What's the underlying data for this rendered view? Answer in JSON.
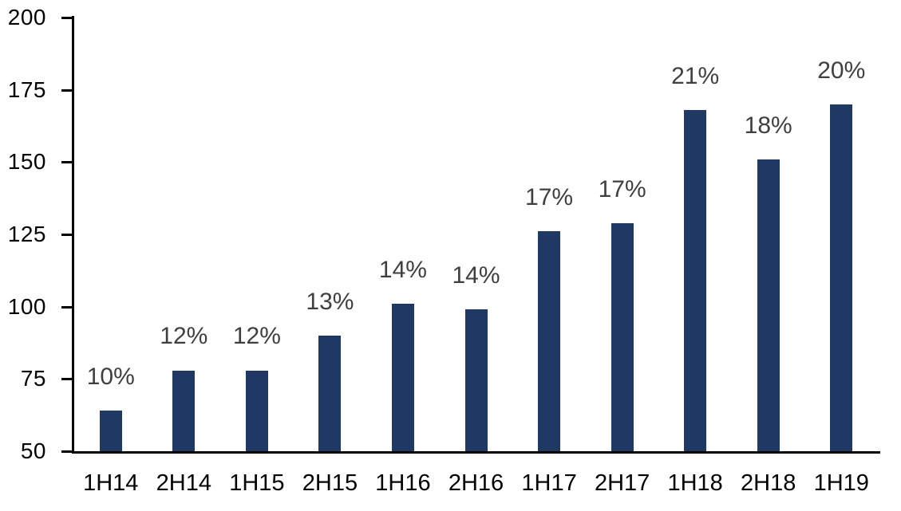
{
  "chart_data": {
    "type": "bar",
    "title": "",
    "xlabel": "",
    "ylabel": "",
    "categories": [
      "1H14",
      "2H14",
      "1H15",
      "2H15",
      "1H16",
      "2H16",
      "1H17",
      "2H17",
      "1H18",
      "2H18",
      "1H19"
    ],
    "series": [
      {
        "name": "value",
        "values": [
          64,
          78,
          78,
          90,
          101,
          99,
          126,
          129,
          168,
          151,
          170
        ],
        "data_labels": [
          "10%",
          "12%",
          "12%",
          "13%",
          "14%",
          "14%",
          "17%",
          "17%",
          "21%",
          "18%",
          "20%"
        ]
      }
    ],
    "ylim": [
      50,
      200
    ],
    "yticks": [
      50,
      75,
      100,
      125,
      150,
      175,
      200
    ],
    "grid": false,
    "legend_position": "none",
    "colors": {
      "bar_fill": "#1F3864",
      "data_label_text": "#3f3f3f",
      "axis_text": "#000000",
      "axis_line": "#000000",
      "background": "#ffffff"
    }
  }
}
